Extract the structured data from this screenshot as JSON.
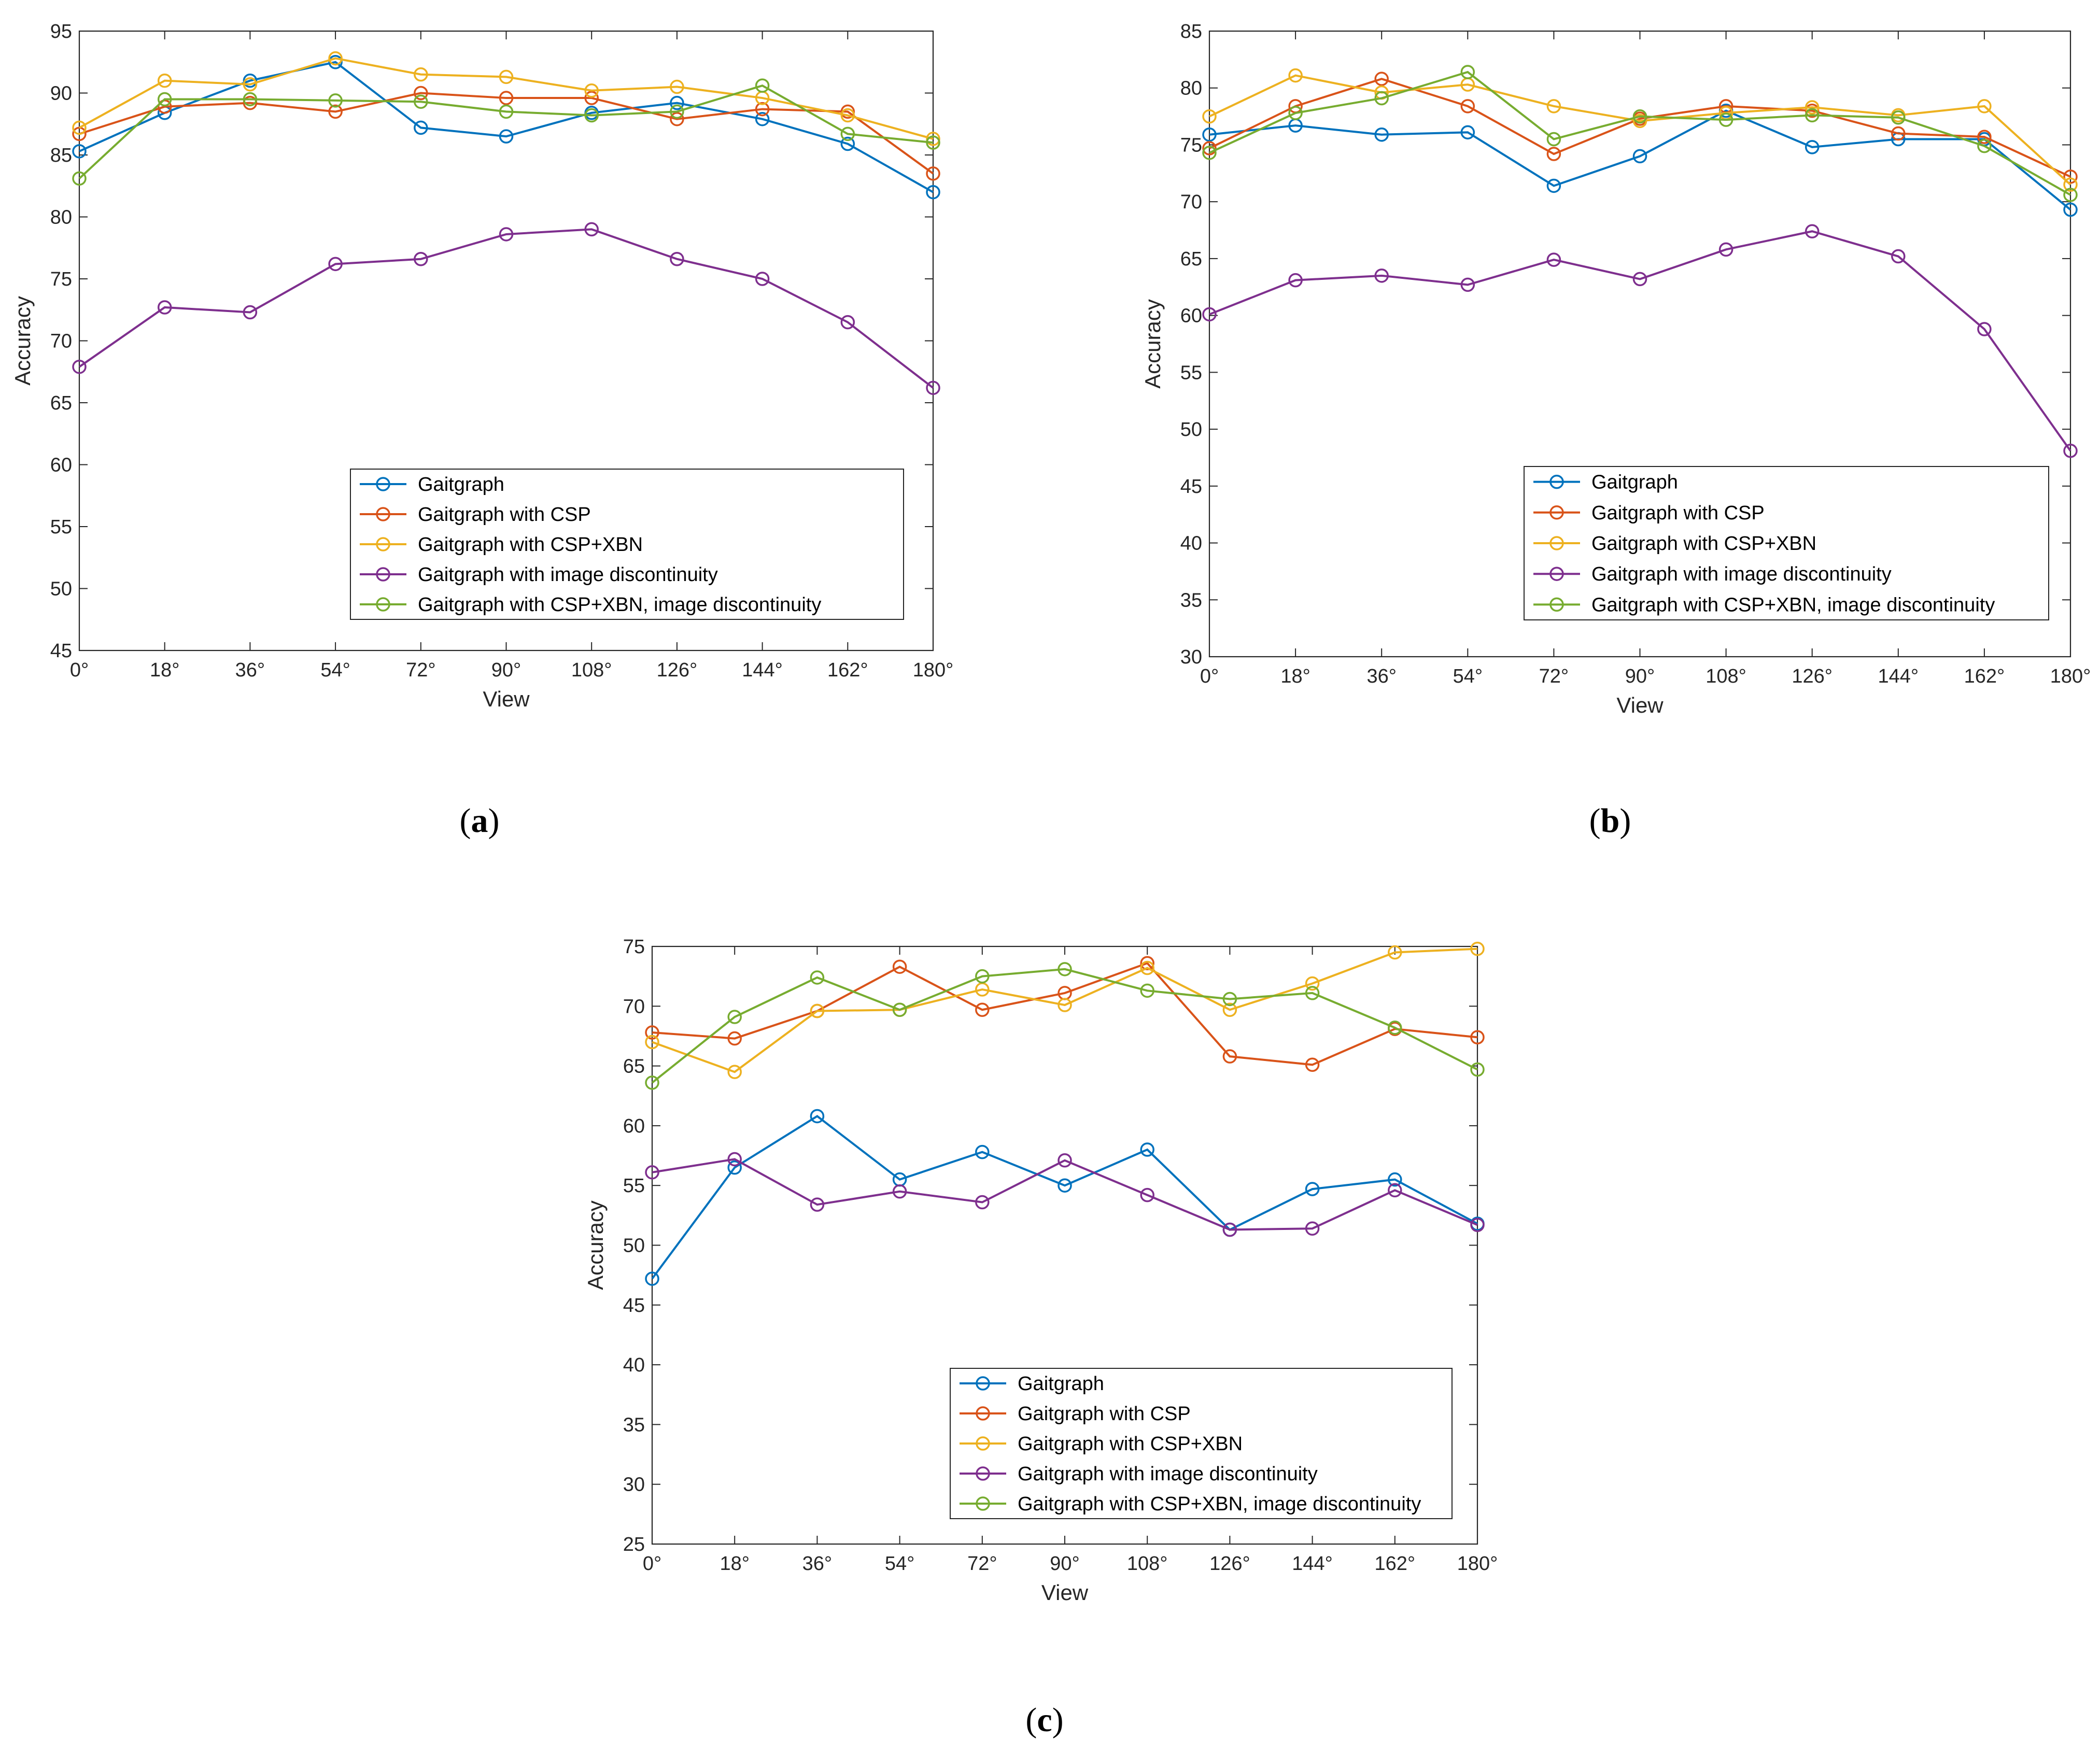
{
  "figure": {
    "panel_labels": [
      "a",
      "b",
      "c"
    ]
  },
  "chart_data": [
    {
      "panel": "a",
      "type": "line",
      "title": "",
      "xlabel": "View",
      "ylabel": "Accuracy",
      "categories": [
        "0°",
        "18°",
        "36°",
        "54°",
        "72°",
        "90°",
        "108°",
        "126°",
        "144°",
        "162°",
        "180°"
      ],
      "ylim": [
        45,
        95
      ],
      "yticks": [
        45,
        50,
        55,
        60,
        65,
        70,
        75,
        80,
        85,
        90,
        95
      ],
      "grid": false,
      "legend_position": "bottom-right",
      "series": [
        {
          "name": "Gaitgraph",
          "color": "#0072BD",
          "values": [
            85.3,
            88.4,
            91.0,
            92.5,
            87.2,
            86.5,
            88.4,
            89.2,
            87.9,
            85.9,
            82.0
          ]
        },
        {
          "name": "Gaitgraph with CSP",
          "color": "#D95319",
          "values": [
            86.7,
            88.9,
            89.2,
            88.5,
            90.0,
            89.6,
            89.6,
            87.9,
            88.7,
            88.5,
            83.5
          ]
        },
        {
          "name": "Gaitgraph with CSP+XBN",
          "color": "#EDB120",
          "values": [
            87.2,
            91.0,
            90.7,
            92.8,
            91.5,
            91.3,
            90.2,
            90.5,
            89.6,
            88.2,
            86.3
          ]
        },
        {
          "name": "Gaitgraph with image discontinuity",
          "color": "#7E2F8E",
          "values": [
            67.9,
            72.7,
            72.3,
            76.2,
            76.6,
            78.6,
            79.0,
            76.6,
            75.0,
            71.5,
            66.2
          ]
        },
        {
          "name": "Gaitgraph with CSP+XBN, image discontinuity",
          "color": "#77AC30",
          "values": [
            83.1,
            89.5,
            89.5,
            89.4,
            89.3,
            88.5,
            88.2,
            88.5,
            90.6,
            86.7,
            86.0
          ]
        }
      ]
    },
    {
      "panel": "b",
      "type": "line",
      "title": "",
      "xlabel": "View",
      "ylabel": "Accuracy",
      "categories": [
        "0°",
        "18°",
        "36°",
        "54°",
        "72°",
        "90°",
        "108°",
        "126°",
        "144°",
        "162°",
        "180°"
      ],
      "ylim": [
        30,
        85
      ],
      "yticks": [
        30,
        35,
        40,
        45,
        50,
        55,
        60,
        65,
        70,
        75,
        80,
        85
      ],
      "grid": false,
      "legend_position": "bottom-right",
      "series": [
        {
          "name": "Gaitgraph",
          "color": "#0072BD",
          "values": [
            75.9,
            76.7,
            75.9,
            76.1,
            71.4,
            74.0,
            78.0,
            74.8,
            75.5,
            75.5,
            69.3
          ]
        },
        {
          "name": "Gaitgraph with CSP",
          "color": "#D95319",
          "values": [
            74.7,
            78.4,
            80.8,
            78.4,
            74.2,
            77.3,
            78.4,
            78.0,
            76.0,
            75.7,
            72.2
          ]
        },
        {
          "name": "Gaitgraph with CSP+XBN",
          "color": "#EDB120",
          "values": [
            77.5,
            81.1,
            79.6,
            80.3,
            78.4,
            77.1,
            77.8,
            78.3,
            77.6,
            78.4,
            71.5
          ]
        },
        {
          "name": "Gaitgraph with image discontinuity",
          "color": "#7E2F8E",
          "values": [
            60.1,
            63.1,
            63.5,
            62.7,
            64.9,
            63.2,
            65.8,
            67.4,
            65.2,
            58.8,
            48.1
          ]
        },
        {
          "name": "Gaitgraph with CSP+XBN, image discontinuity",
          "color": "#77AC30",
          "values": [
            74.3,
            77.8,
            79.1,
            81.4,
            75.5,
            77.5,
            77.2,
            77.6,
            77.4,
            74.9,
            70.6
          ]
        }
      ]
    },
    {
      "panel": "c",
      "type": "line",
      "title": "",
      "xlabel": "View",
      "ylabel": "Accuracy",
      "categories": [
        "0°",
        "18°",
        "36°",
        "54°",
        "72°",
        "90°",
        "108°",
        "126°",
        "144°",
        "162°",
        "180°"
      ],
      "ylim": [
        25,
        75
      ],
      "yticks": [
        25,
        30,
        35,
        40,
        45,
        50,
        55,
        60,
        65,
        70,
        75
      ],
      "grid": false,
      "legend_position": "bottom-right",
      "series": [
        {
          "name": "Gaitgraph",
          "color": "#0072BD",
          "values": [
            47.2,
            56.5,
            60.8,
            55.5,
            57.8,
            55.0,
            58.0,
            51.3,
            54.7,
            55.5,
            51.8
          ]
        },
        {
          "name": "Gaitgraph with CSP",
          "color": "#D95319",
          "values": [
            67.8,
            67.3,
            69.6,
            73.3,
            69.7,
            71.1,
            73.6,
            65.8,
            65.1,
            68.1,
            67.4
          ]
        },
        {
          "name": "Gaitgraph with CSP+XBN",
          "color": "#EDB120",
          "values": [
            67.0,
            64.5,
            69.6,
            69.7,
            71.4,
            70.1,
            73.2,
            69.7,
            71.9,
            74.5,
            74.8
          ]
        },
        {
          "name": "Gaitgraph with image discontinuity",
          "color": "#7E2F8E",
          "values": [
            56.1,
            57.2,
            53.4,
            54.5,
            53.6,
            57.1,
            54.2,
            51.3,
            51.4,
            54.6,
            51.7
          ]
        },
        {
          "name": "Gaitgraph with CSP+XBN, image discontinuity",
          "color": "#77AC30",
          "values": [
            63.6,
            69.1,
            72.4,
            69.7,
            72.5,
            73.1,
            71.3,
            70.6,
            71.1,
            68.2,
            64.7
          ]
        }
      ]
    }
  ]
}
